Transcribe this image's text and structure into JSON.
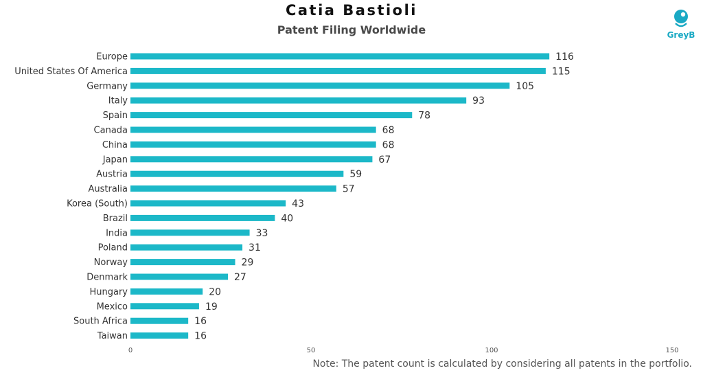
{
  "chart_data": {
    "type": "bar",
    "orientation": "horizontal",
    "title": "Catia Bastioli",
    "subtitle": "Patent Filing Worldwide",
    "categories": [
      "Europe",
      "United States Of America",
      "Germany",
      "Italy",
      "Spain",
      "Canada",
      "China",
      "Japan",
      "Austria",
      "Australia",
      "Korea (South)",
      "Brazil",
      "India",
      "Poland",
      "Norway",
      "Denmark",
      "Hungary",
      "Mexico",
      "South Africa",
      "Taiwan"
    ],
    "values": [
      116,
      115,
      105,
      93,
      78,
      68,
      68,
      67,
      59,
      57,
      43,
      40,
      33,
      31,
      29,
      27,
      20,
      19,
      16,
      16
    ],
    "xlim": [
      0,
      150
    ],
    "xticks": [
      "0",
      "50",
      "100",
      "150"
    ],
    "bar_color": "#1cb8c8",
    "grid": false,
    "legend": "none"
  },
  "footnote": "Note: The patent count is calculated by considering all patents in the portfolio.",
  "brand": {
    "name": "GreyB",
    "icon": "greyb-logo-icon",
    "color": "#1aa9c4"
  }
}
